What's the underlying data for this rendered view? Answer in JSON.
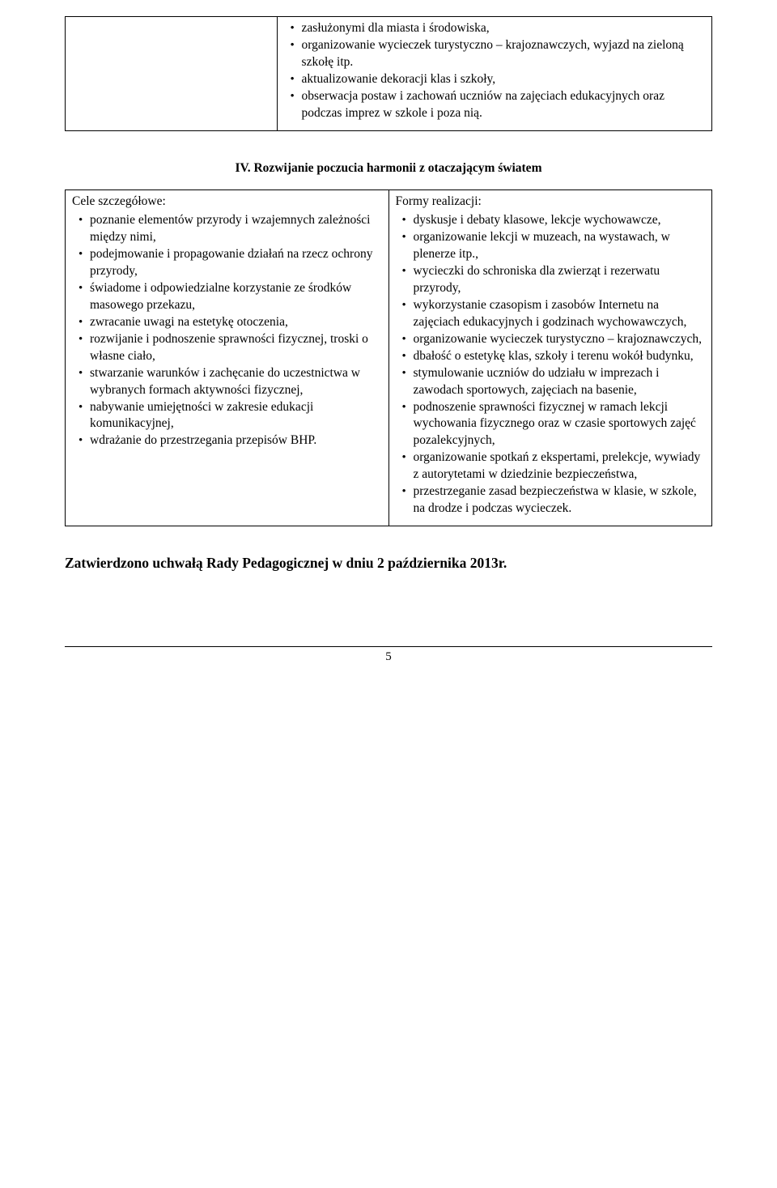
{
  "topTable": {
    "rightItems": [
      "zasłużonymi dla miasta i środowiska,",
      "organizowanie wycieczek turystyczno – krajoznawczych, wyjazd na zieloną szkołę itp.",
      "aktualizowanie dekoracji klas i szkoły,",
      "obserwacja postaw i zachowań uczniów na zajęciach edukacyjnych oraz podczas imprez w szkole i poza nią."
    ]
  },
  "sectionHeading": "IV. Rozwijanie poczucia harmonii z otaczającym światem",
  "mainTable": {
    "leftHeader": "Cele szczegółowe:",
    "leftItems": [
      "poznanie elementów przyrody i wzajemnych zależności między nimi,",
      "podejmowanie i propagowanie działań na rzecz ochrony przyrody,",
      "świadome i odpowiedzialne korzystanie ze środków masowego przekazu,",
      "zwracanie uwagi na estetykę otoczenia,",
      "rozwijanie i podnoszenie sprawności fizycznej, troski o własne ciało,",
      "stwarzanie warunków i zachęcanie do uczestnictwa w wybranych formach aktywności fizycznej,",
      "nabywanie umiejętności w zakresie edukacji komunikacyjnej,",
      "wdrażanie do przestrzegania przepisów BHP."
    ],
    "rightHeader": "Formy realizacji:",
    "rightItems": [
      "dyskusje i debaty klasowe, lekcje wychowawcze,",
      "organizowanie lekcji w muzeach, na wystawach, w plenerze itp.,",
      "wycieczki do schroniska dla zwierząt i rezerwatu przyrody,",
      "wykorzystanie czasopism i zasobów Internetu na zajęciach edukacyjnych i godzinach wychowawczych,",
      "organizowanie wycieczek turystyczno – krajoznawczych,",
      "dbałość o estetykę klas, szkoły i terenu wokół budynku,",
      "stymulowanie uczniów do udziału w imprezach i zawodach sportowych, zajęciach na basenie,",
      "podnoszenie sprawności fizycznej w ramach lekcji wychowania fizycznego oraz w czasie sportowych zajęć pozalekcyjnych,",
      "organizowanie spotkań z ekspertami, prelekcje, wywiady z autorytetami w dziedzinie bezpieczeństwa,",
      "przestrzeganie zasad bezpieczeństwa w klasie, w szkole, na drodze i podczas wycieczek."
    ]
  },
  "approval": "Zatwierdzono uchwałą Rady Pedagogicznej w dniu 2 października 2013r.",
  "pageNumber": "5"
}
